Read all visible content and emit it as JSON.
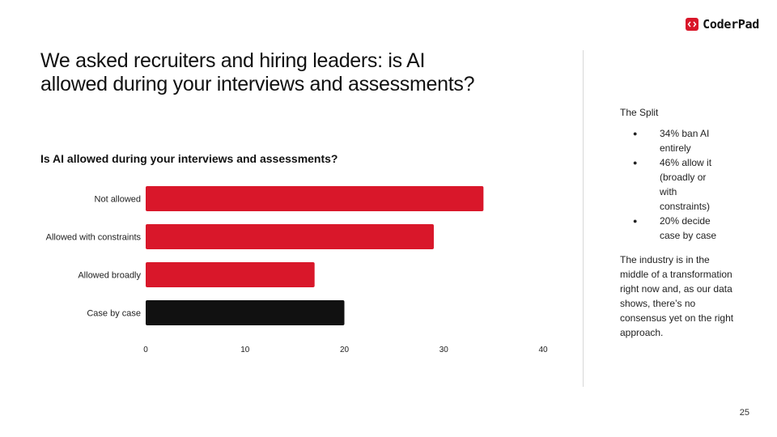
{
  "brand": {
    "logo_icon": "code-brackets-icon",
    "name": "CoderPad",
    "accent": "#d9172a"
  },
  "slide": {
    "title": "We asked recruiters and hiring leaders: is AI allowed during your interviews and assessments?",
    "page_number": "25"
  },
  "chart_data": {
    "type": "bar",
    "orientation": "horizontal",
    "title": "Is AI allowed during your interviews and assessments?",
    "categories": [
      "Not allowed",
      "Allowed with constraints",
      "Allowed broadly",
      "Case by case"
    ],
    "values": [
      34,
      29,
      17,
      20
    ],
    "colors": [
      "#d9172a",
      "#d9172a",
      "#d9172a",
      "#111111"
    ],
    "xlim": [
      0,
      40
    ],
    "xticks": [
      "0",
      "10",
      "20",
      "30",
      "40"
    ],
    "xlabel": "",
    "ylabel": "",
    "grid": false,
    "legend": "none"
  },
  "sidebar": {
    "heading": "The Split",
    "bullets": [
      "34% ban AI entirely",
      "46% allow it (broadly or with constraints)",
      "20% decide case by case"
    ],
    "body": "The industry is in the middle of a transformation right now and, as our data shows, there’s no consensus yet on the right approach."
  }
}
